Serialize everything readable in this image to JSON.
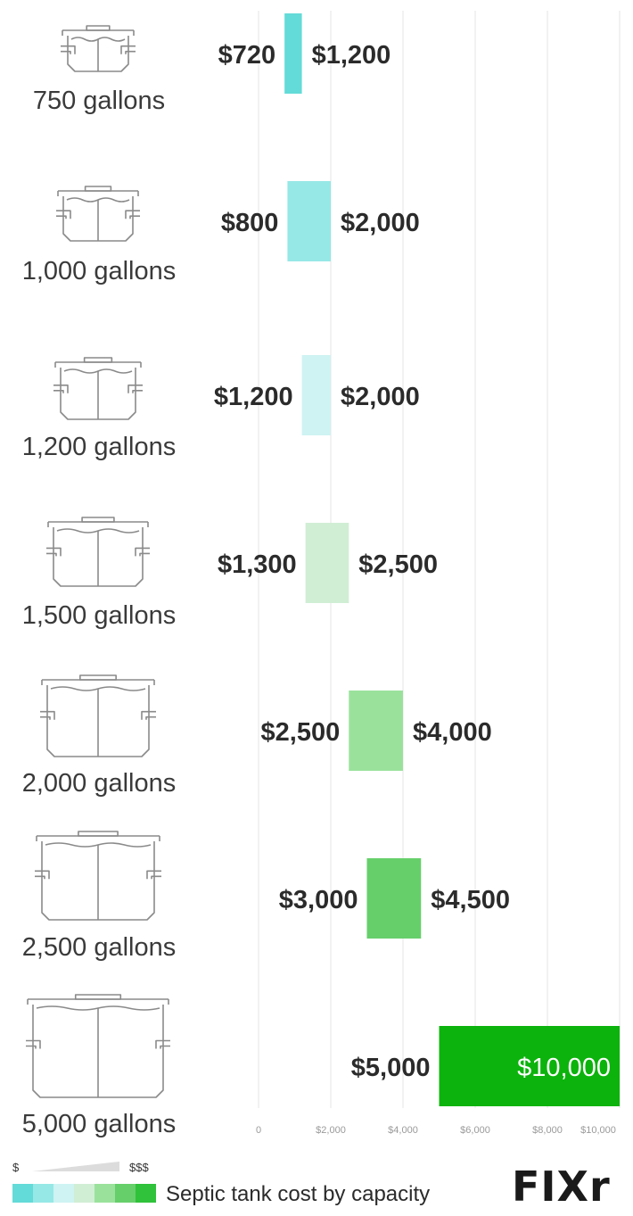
{
  "chart_data": {
    "type": "bar",
    "subtype": "floating-range",
    "orientation": "horizontal",
    "categories": [
      "750 gallons",
      "1,000 gallons",
      "1,200 gallons",
      "1,500 gallons",
      "2,000 gallons",
      "2,500 gallons",
      "5,000 gallons"
    ],
    "ranges": [
      {
        "low": 720,
        "high": 1200,
        "low_label": "$720",
        "high_label": "$1,200",
        "color": "#63dbd8"
      },
      {
        "low": 800,
        "high": 2000,
        "low_label": "$800",
        "high_label": "$2,000",
        "color": "#96e8e6"
      },
      {
        "low": 1200,
        "high": 2000,
        "low_label": "$1,200",
        "high_label": "$2,000",
        "color": "#cef3f2"
      },
      {
        "low": 1300,
        "high": 2500,
        "low_label": "$1,300",
        "high_label": "$2,500",
        "color": "#d0eed4"
      },
      {
        "low": 2500,
        "high": 4000,
        "low_label": "$2,500",
        "high_label": "$4,000",
        "color": "#9ae29c"
      },
      {
        "low": 3000,
        "high": 4500,
        "low_label": "$3,000",
        "high_label": "$4,500",
        "color": "#66cf6a"
      },
      {
        "low": 5000,
        "high": 10000,
        "low_label": "$5,000",
        "high_label": "$10,000",
        "color": "#0cb30c"
      }
    ],
    "x_ticks": [
      {
        "value": 0,
        "label": "0"
      },
      {
        "value": 2000,
        "label": "$2,000"
      },
      {
        "value": 4000,
        "label": "$4,000"
      },
      {
        "value": 6000,
        "label": "$6,000"
      },
      {
        "value": 8000,
        "label": "$8,000"
      },
      {
        "value": 10000,
        "label": "$10,000"
      }
    ],
    "xlim": [
      0,
      10000
    ],
    "grid": true,
    "legend": {
      "low_label": "$",
      "high_label": "$$$",
      "caption": "Septic tank cost by capacity",
      "swatches": [
        "#63dbd8",
        "#96e8e6",
        "#cef3f2",
        "#d0eed4",
        "#9ae29c",
        "#66cf6a",
        "#2fc23a"
      ]
    }
  },
  "brand": {
    "name": "FIXr"
  },
  "colors": {
    "grid": "#e6e6e6",
    "icon_stroke": "#8a8a8a",
    "text": "#2b2b2b"
  }
}
